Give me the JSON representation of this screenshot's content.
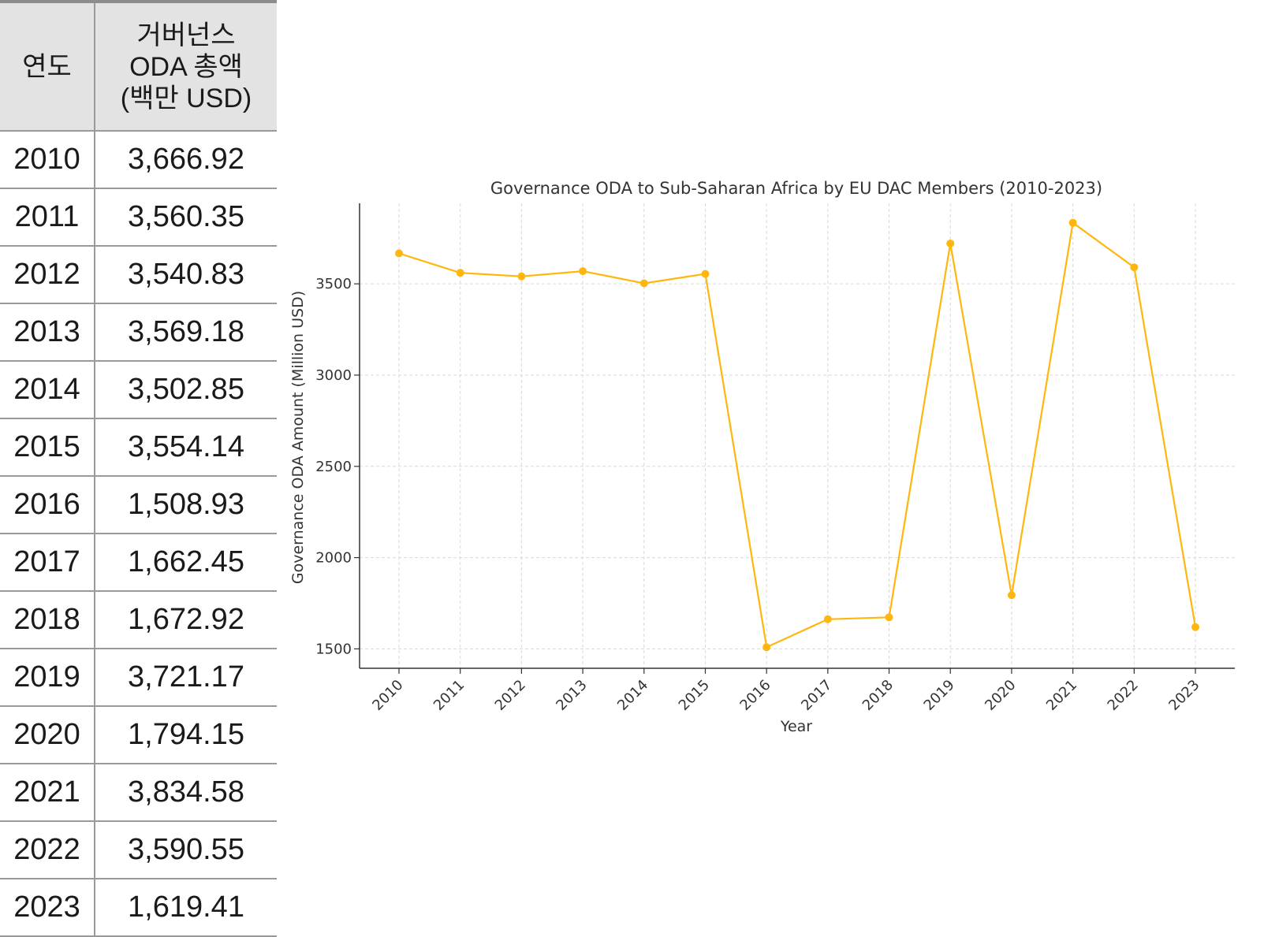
{
  "table": {
    "header_year": "연도",
    "header_amount_lines": [
      "거버넌스",
      "ODA  총액",
      "(백만  USD)"
    ],
    "rows": [
      {
        "year": "2010",
        "amount": "3,666.92"
      },
      {
        "year": "2011",
        "amount": "3,560.35"
      },
      {
        "year": "2012",
        "amount": "3,540.83"
      },
      {
        "year": "2013",
        "amount": "3,569.18"
      },
      {
        "year": "2014",
        "amount": "3,502.85"
      },
      {
        "year": "2015",
        "amount": "3,554.14"
      },
      {
        "year": "2016",
        "amount": "1,508.93"
      },
      {
        "year": "2017",
        "amount": "1,662.45"
      },
      {
        "year": "2018",
        "amount": "1,672.92"
      },
      {
        "year": "2019",
        "amount": "3,721.17"
      },
      {
        "year": "2020",
        "amount": "1,794.15"
      },
      {
        "year": "2021",
        "amount": "3,834.58"
      },
      {
        "year": "2022",
        "amount": "3,590.55"
      },
      {
        "year": "2023",
        "amount": "1,619.41"
      }
    ]
  },
  "chart_data": {
    "type": "line",
    "title": "Governance ODA to Sub-Saharan Africa by EU DAC Members (2010-2023)",
    "xlabel": "Year",
    "ylabel": "Governance ODA Amount (Million USD)",
    "x": [
      "2010",
      "2011",
      "2012",
      "2013",
      "2014",
      "2015",
      "2016",
      "2017",
      "2018",
      "2019",
      "2020",
      "2021",
      "2022",
      "2023"
    ],
    "series": [
      {
        "values": [
          3666.92,
          3560.35,
          3540.83,
          3569.18,
          3502.85,
          3554.14,
          1508.93,
          1662.45,
          1672.92,
          3721.17,
          1794.15,
          3834.58,
          3590.55,
          1619.41
        ],
        "color": "#FFB70F"
      }
    ],
    "yticks": [
      1500,
      2000,
      2500,
      3000,
      3500
    ],
    "ylim": [
      1393.7,
      3941.1
    ],
    "grid": true,
    "legend": "none"
  }
}
